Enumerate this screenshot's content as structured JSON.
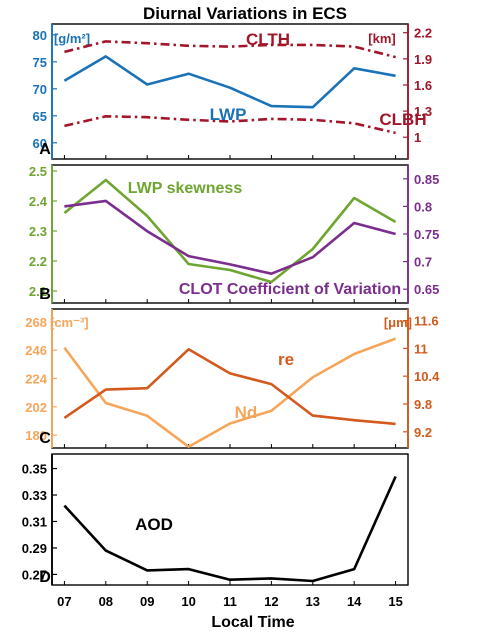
{
  "title": "Diurnal Variations in ECS",
  "xlabel": "Local Time",
  "x_ticks": [
    "07",
    "08",
    "09",
    "10",
    "11",
    "12",
    "13",
    "14",
    "15"
  ],
  "chart_data": [
    {
      "type": "line",
      "panel": "A",
      "x": [
        7,
        8,
        9,
        10,
        11,
        12,
        13,
        14,
        15
      ],
      "left_unit": "[g/m²]",
      "right_unit": "[km]",
      "left_color": "#1a73b8",
      "right_color": "#a3162a",
      "ylim_left": [
        57,
        82
      ],
      "ylim_right": [
        0.75,
        2.3
      ],
      "yticks_left": [
        60,
        65,
        70,
        75,
        80
      ],
      "yticks_right": [
        1,
        1.3,
        1.6,
        1.9,
        2.2
      ],
      "series": [
        {
          "name": "LWP",
          "axis": "left",
          "color": "#1a73b8",
          "style": "solid",
          "values": [
            71.5,
            76.0,
            70.8,
            72.8,
            70.2,
            66.8,
            66.6,
            73.8,
            72.4
          ]
        },
        {
          "name": "CLTH",
          "axis": "right",
          "color": "#a3162a",
          "style": "dashdot",
          "values": [
            1.98,
            2.1,
            2.08,
            2.05,
            2.04,
            2.06,
            2.06,
            2.04,
            1.92
          ]
        },
        {
          "name": "CLBH",
          "axis": "right",
          "color": "#a3162a",
          "style": "dashdot",
          "values": [
            1.13,
            1.24,
            1.23,
            1.2,
            1.18,
            1.21,
            1.2,
            1.16,
            1.05
          ]
        }
      ]
    },
    {
      "type": "line",
      "panel": "B",
      "x": [
        7,
        8,
        9,
        10,
        11,
        12,
        13,
        14,
        15
      ],
      "left_color": "#6fa531",
      "right_color": "#7b2e8e",
      "ylim_left": [
        2.06,
        2.52
      ],
      "ylim_right": [
        0.625,
        0.875
      ],
      "yticks_left": [
        2.1,
        2.2,
        2.3,
        2.4,
        2.5
      ],
      "yticks_right": [
        0.65,
        0.7,
        0.75,
        0.8,
        0.85
      ],
      "series": [
        {
          "name": "LWP skewness",
          "axis": "left",
          "color": "#6fa531",
          "style": "solid",
          "values": [
            2.36,
            2.47,
            2.35,
            2.19,
            2.17,
            2.13,
            2.24,
            2.41,
            2.33
          ]
        },
        {
          "name": "CLOT Coefficient of Variation",
          "axis": "right",
          "color": "#7b2e8e",
          "style": "solid",
          "values": [
            0.8,
            0.81,
            0.755,
            0.71,
            0.695,
            0.678,
            0.708,
            0.77,
            0.75
          ]
        }
      ]
    },
    {
      "type": "line",
      "panel": "C",
      "x": [
        7,
        8,
        9,
        10,
        11,
        12,
        13,
        14,
        15
      ],
      "left_unit": "[cm⁻³]",
      "right_unit": "[μm]",
      "left_color": "#f5a65b",
      "right_color": "#d35a1c",
      "ylim_left": [
        170,
        278
      ],
      "ylim_right": [
        8.85,
        11.85
      ],
      "yticks_left": [
        180,
        202,
        224,
        246,
        268
      ],
      "yticks_right": [
        9.2,
        9.8,
        10.4,
        11,
        11.6
      ],
      "series": [
        {
          "name": "Nd",
          "axis": "left",
          "color": "#f5a65b",
          "style": "solid",
          "values": [
            248,
            205,
            195,
            171,
            189,
            199,
            225,
            243,
            255
          ]
        },
        {
          "name": "re",
          "axis": "right",
          "color": "#d35a1c",
          "style": "solid",
          "values": [
            9.5,
            10.11,
            10.14,
            10.98,
            10.46,
            10.23,
            9.55,
            9.45,
            9.37
          ]
        }
      ]
    },
    {
      "type": "line",
      "panel": "D",
      "x": [
        7,
        8,
        9,
        10,
        11,
        12,
        13,
        14,
        15
      ],
      "left_color": "#000000",
      "ylim_left": [
        0.262,
        0.361
      ],
      "yticks_left": [
        0.27,
        0.29,
        0.31,
        0.33,
        0.35
      ],
      "series": [
        {
          "name": "AOD",
          "axis": "left",
          "color": "#000000",
          "style": "solid",
          "values": [
            0.322,
            0.288,
            0.273,
            0.274,
            0.266,
            0.267,
            0.265,
            0.274,
            0.344
          ]
        }
      ]
    }
  ]
}
